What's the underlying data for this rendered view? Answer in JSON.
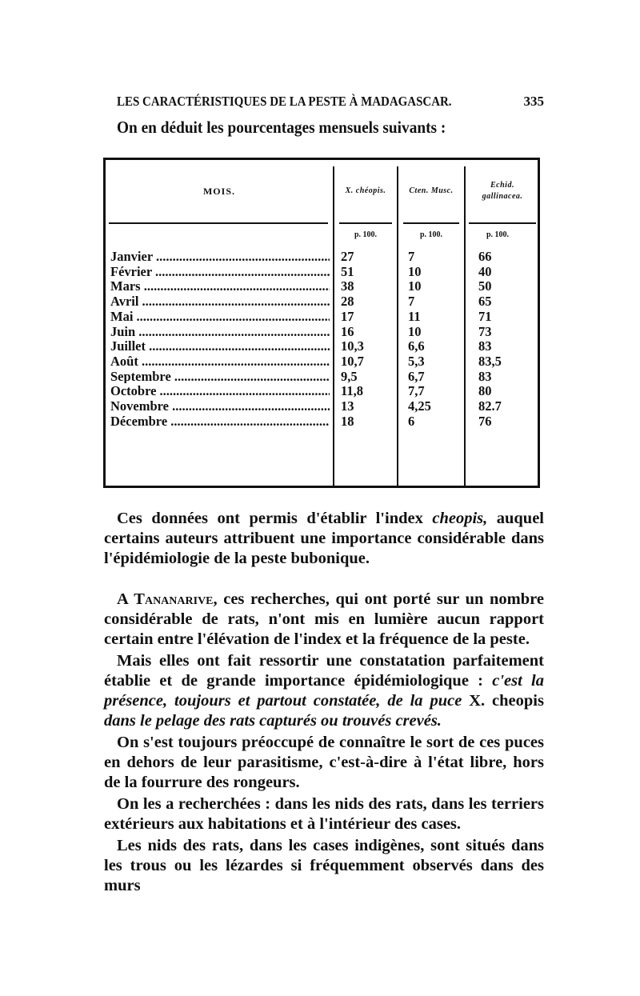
{
  "header": {
    "title": "LES CARACTÉRISTIQUES DE LA PESTE À MADAGASCAR.",
    "page_number": "335"
  },
  "intro": "On en déduit les pourcentages mensuels suivants :",
  "table": {
    "columns": [
      "MOIS.",
      "X. chéopis.",
      "Cten. Musc.",
      "Echid. gallinacea."
    ],
    "units": [
      "p. 100.",
      "p. 100.",
      "p. 100."
    ],
    "rows": [
      [
        "Janvier",
        "27",
        "7",
        "66"
      ],
      [
        "Février",
        "51",
        "10",
        "40"
      ],
      [
        "Mars",
        "38",
        "10",
        "50"
      ],
      [
        "Avril",
        "28",
        "7",
        "65"
      ],
      [
        "Mai",
        "17",
        "11",
        "71"
      ],
      [
        "Juin",
        "16",
        "10",
        "73"
      ],
      [
        "Juillet",
        "10,3",
        "6,6",
        "83"
      ],
      [
        "Août",
        "10,7",
        "5,3",
        "83,5"
      ],
      [
        "Septembre",
        "9,5",
        "6,7",
        "83"
      ],
      [
        "Octobre",
        "11,8",
        "7,7",
        "80"
      ],
      [
        "Novembre",
        "13",
        "4,25",
        "82.7"
      ],
      [
        "Décembre",
        "18",
        "6",
        "76"
      ]
    ]
  },
  "paragraphs": [
    [
      {
        "t": "Ces données ont permis d'établir l'index "
      },
      {
        "t": "cheopis,",
        "i": true
      },
      {
        "t": " auquel certains auteurs attribuent une importance considérable dans l'épidémiologie de la peste bubonique."
      }
    ],
    [
      {
        "t": "A "
      },
      {
        "t": "Tananarive",
        "sc": true
      },
      {
        "t": ", ces recherches, qui ont porté sur un nombre considérable de rats, n'ont mis en lumière aucun rapport certain entre l'élévation de l'index et la fréquence de la peste."
      }
    ],
    [
      {
        "t": "Mais elles ont fait ressortir une constatation parfaitement établie et de grande importance épidémiologique : "
      },
      {
        "t": "c'est la présence, toujours et partout constatée, de la puce ",
        "i": true
      },
      {
        "t": "X. cheopis "
      },
      {
        "t": "dans le pelage des rats capturés ou trouvés crevés.",
        "i": true
      }
    ],
    [
      {
        "t": "On s'est toujours préoccupé de connaître le sort de ces puces en dehors de leur parasitisme, c'est-à-dire à l'état libre, hors de la fourrure des rongeurs."
      }
    ],
    [
      {
        "t": "On les a recherchées : dans les nids des rats, dans les terriers extérieurs aux habitations et à l'intérieur des cases."
      }
    ],
    [
      {
        "t": "Les nids des rats, dans les cases indigènes, sont situés dans les trous ou les lézardes si fréquemment observés dans des murs"
      }
    ]
  ]
}
